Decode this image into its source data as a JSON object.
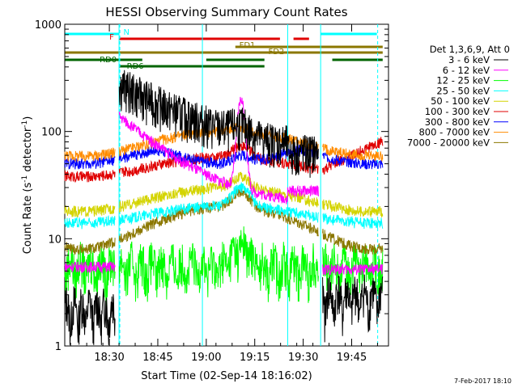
{
  "chart_data": {
    "type": "line",
    "title": "HESSI Observing Summary Count Rates",
    "xlabel": "Start Time (02-Sep-14 18:16:02)",
    "ylabel": "Count Rate (s",
    "ylabel_sup": "-1",
    "ylabel_tail": " detector",
    "ylabel_close": ")",
    "yscale": "log",
    "ylim": [
      1,
      1000
    ],
    "xlim_minutes": [
      18.27,
      19.94
    ],
    "x_ticks": [
      {
        "label": "18:30",
        "h": 18.5
      },
      {
        "label": "18:45",
        "h": 18.75
      },
      {
        "label": "19:00",
        "h": 19.0
      },
      {
        "label": "19:15",
        "h": 19.25
      },
      {
        "label": "19:30",
        "h": 19.5
      },
      {
        "label": "19:45",
        "h": 19.75
      }
    ],
    "y_ticks": [
      {
        "label": "1",
        "v": 1
      },
      {
        "label": "10",
        "v": 10
      },
      {
        "label": "100",
        "v": 100
      },
      {
        "label": "1000",
        "v": 1000
      }
    ],
    "footer": "7-Feb-2017 18:10",
    "legend_header": "Det 1,3,6,9, Att 0",
    "series": [
      {
        "name": "3 - 6 keV",
        "color": "#000000"
      },
      {
        "name": "6 - 12 keV",
        "color": "#ff00ff"
      },
      {
        "name": "12 - 25 keV",
        "color": "#00ff00"
      },
      {
        "name": "25 - 50 keV",
        "color": "#00ffff"
      },
      {
        "name": "50 - 100 keV",
        "color": "#d4d400"
      },
      {
        "name": "100 - 300 keV",
        "color": "#e00000"
      },
      {
        "name": "300 - 800 keV",
        "color": "#0000ff"
      },
      {
        "name": "800 - 7000 keV",
        "color": "#ff8c00"
      },
      {
        "name": "7000 - 20000 keV",
        "color": "#8b7700"
      }
    ],
    "flag_bars": [
      {
        "label": "N",
        "color": "#00ffff",
        "segments": [
          [
            18.27,
            18.55
          ],
          [
            19.59,
            19.88
          ]
        ]
      },
      {
        "label": "F",
        "color": "#e00000",
        "segments": [
          [
            18.55,
            19.38
          ],
          [
            19.45,
            19.53
          ]
        ]
      },
      {
        "label": "FD1",
        "color": "#8b7700",
        "segments": [
          [
            19.15,
            19.91
          ]
        ]
      },
      {
        "label": "FD2",
        "color": "#8b7700",
        "segments": [
          [
            18.27,
            19.91
          ]
        ]
      },
      {
        "label": "RD0",
        "color": "#006400",
        "segments": [
          [
            18.27,
            18.67
          ],
          [
            19.0,
            19.3
          ],
          [
            19.65,
            19.91
          ]
        ]
      },
      {
        "label": "RD6",
        "color": "#006400",
        "segments": [
          [
            18.55,
            19.3
          ]
        ]
      }
    ],
    "night_lines_h": [
      18.55,
      18.98,
      19.42,
      19.59
    ],
    "dashed_lines_h": [
      18.55,
      19.88
    ]
  }
}
